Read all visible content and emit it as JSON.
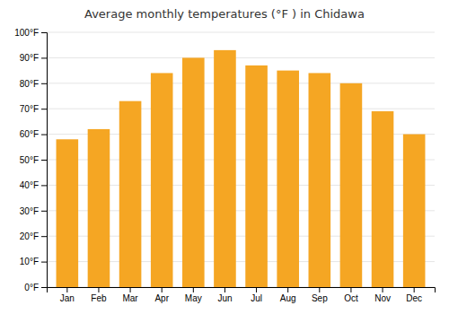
{
  "chart_data": {
    "type": "bar",
    "title": "Average monthly temperatures (°F ) in Chidawa",
    "categories": [
      "Jan",
      "Feb",
      "Mar",
      "Apr",
      "May",
      "Jun",
      "Jul",
      "Aug",
      "Sep",
      "Oct",
      "Nov",
      "Dec"
    ],
    "values": [
      58,
      62,
      73,
      84,
      90,
      93,
      87,
      85,
      84,
      80,
      69,
      60
    ],
    "color": "#F5A623",
    "ylim": [
      0,
      100
    ],
    "yticks": [
      {
        "value": 0,
        "label": "0°F"
      },
      {
        "value": 10,
        "label": "10°F"
      },
      {
        "value": 20,
        "label": "20°F"
      },
      {
        "value": 30,
        "label": "30°F"
      },
      {
        "value": 40,
        "label": "40°F"
      },
      {
        "value": 50,
        "label": "50°F"
      },
      {
        "value": 60,
        "label": "60°F"
      },
      {
        "value": 70,
        "label": "70°F"
      },
      {
        "value": 80,
        "label": "80°F"
      },
      {
        "value": 90,
        "label": "90°F"
      },
      {
        "value": 100,
        "label": "100°F"
      }
    ],
    "grid": true
  }
}
